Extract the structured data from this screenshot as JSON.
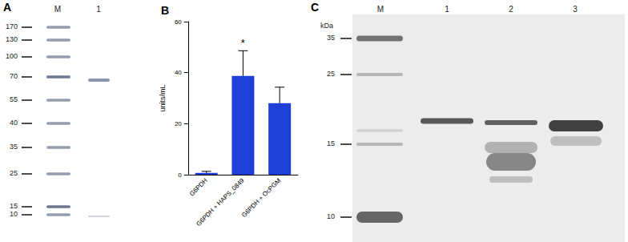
{
  "chart_data": {
    "type": "bar",
    "title": "B",
    "categories": [
      "G6PDH",
      "G6PDH + HAPS_0849",
      "G6PDH + OcPGM"
    ],
    "values": [
      0.7,
      38.7,
      28.0
    ],
    "errors": [
      0.6,
      9.9,
      6.3
    ],
    "color": "#1f3fd9",
    "ylabel": "units/mL",
    "ylim": [
      0,
      60
    ],
    "yticks": [
      0,
      20,
      40,
      60
    ],
    "grid": false,
    "annotations": [
      {
        "text": "*",
        "category": "G6PDH + HAPS_0849"
      }
    ]
  },
  "gels": [
    {
      "panel": "A",
      "lanes": [
        "M",
        "1"
      ],
      "markers": [
        170,
        130,
        100,
        70,
        55,
        40,
        35,
        25,
        15,
        10
      ]
    },
    {
      "panel": "C",
      "unit": "kDa",
      "lanes": [
        "M",
        "1",
        "2",
        "3"
      ],
      "markers": [
        35,
        25,
        15,
        10
      ]
    }
  ]
}
